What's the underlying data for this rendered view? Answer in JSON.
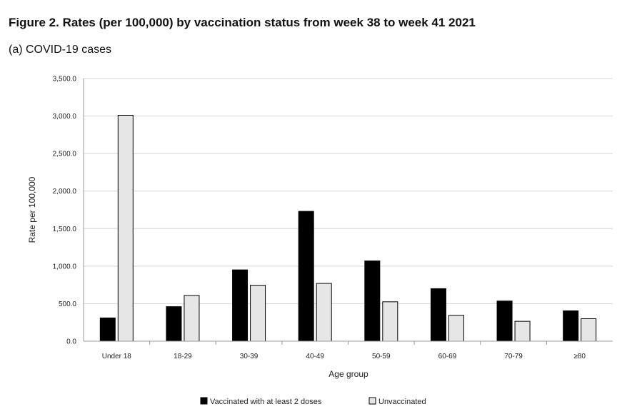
{
  "chart_data": {
    "type": "bar",
    "title": "Figure 2. Rates (per 100,000) by vaccination status from week 38 to week 41 2021",
    "subtitle": "(a) COVID-19 cases",
    "xlabel": "Age group",
    "ylabel": "Rate per 100,000",
    "ylim": [
      0,
      3500
    ],
    "yticks": [
      "0.0",
      "500.0",
      "1,000.0",
      "1,500.0",
      "2,000.0",
      "2,500.0",
      "3,000.0",
      "3,500.0"
    ],
    "categories": [
      "Under 18",
      "18-29",
      "30-39",
      "40-49",
      "50-59",
      "60-69",
      "70-79",
      "≥80"
    ],
    "series": [
      {
        "name": "Vaccinated with at least 2 doses",
        "color": "#000000",
        "values": [
          310,
          460,
          950,
          1730,
          1070,
          700,
          535,
          405
        ]
      },
      {
        "name": "Unvaccinated",
        "color": "#e6e6e6",
        "values": [
          3010,
          610,
          745,
          770,
          525,
          345,
          265,
          300
        ]
      }
    ],
    "grid": true,
    "legend_position": "bottom"
  }
}
